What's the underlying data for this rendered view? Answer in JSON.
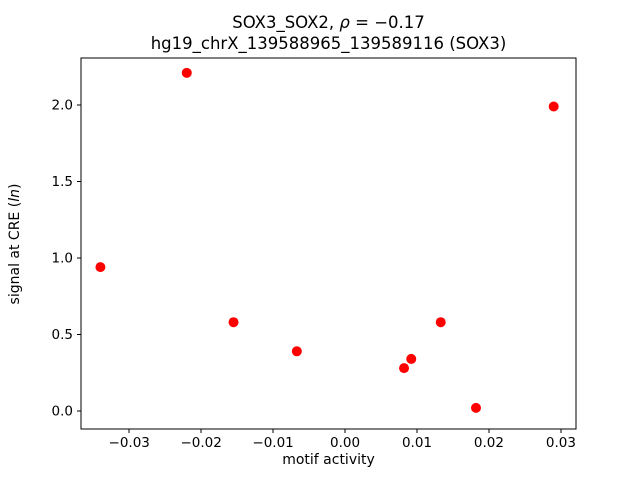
{
  "chart_data": {
    "type": "scatter",
    "title": {
      "line1_prefix": "SOX3_SOX2, ",
      "line1_rho": "ρ",
      "line1_rest": " = −0.17",
      "line2": "hg19_chrX_139588965_139589116 (SOX3)"
    },
    "xlabel": "motif activity",
    "ylabel_prefix": "signal at CRE (",
    "ylabel_italic": "ln",
    "ylabel_suffix": ")",
    "xlim": [
      -0.0367,
      0.0321
    ],
    "ylim": [
      -0.118,
      2.307
    ],
    "xticks": [
      -0.03,
      -0.02,
      -0.01,
      0.0,
      0.01,
      0.02,
      0.03
    ],
    "xtick_labels": [
      "−0.03",
      "−0.02",
      "−0.01",
      "0.00",
      "0.01",
      "0.02",
      "0.03"
    ],
    "yticks": [
      0.0,
      0.5,
      1.0,
      1.5,
      2.0
    ],
    "ytick_labels": [
      "0.0",
      "0.5",
      "1.0",
      "1.5",
      "2.0"
    ],
    "marker_color": "#ff0000",
    "axis_color": "#000000",
    "legend": "off",
    "grid": "off",
    "points": [
      {
        "x": -0.034,
        "y": 0.94
      },
      {
        "x": -0.022,
        "y": 2.21
      },
      {
        "x": -0.0155,
        "y": 0.58
      },
      {
        "x": -0.0067,
        "y": 0.39
      },
      {
        "x": 0.0082,
        "y": 0.28
      },
      {
        "x": 0.0092,
        "y": 0.34
      },
      {
        "x": 0.0133,
        "y": 0.58
      },
      {
        "x": 0.0182,
        "y": 0.02
      },
      {
        "x": 0.029,
        "y": 1.99
      }
    ]
  }
}
